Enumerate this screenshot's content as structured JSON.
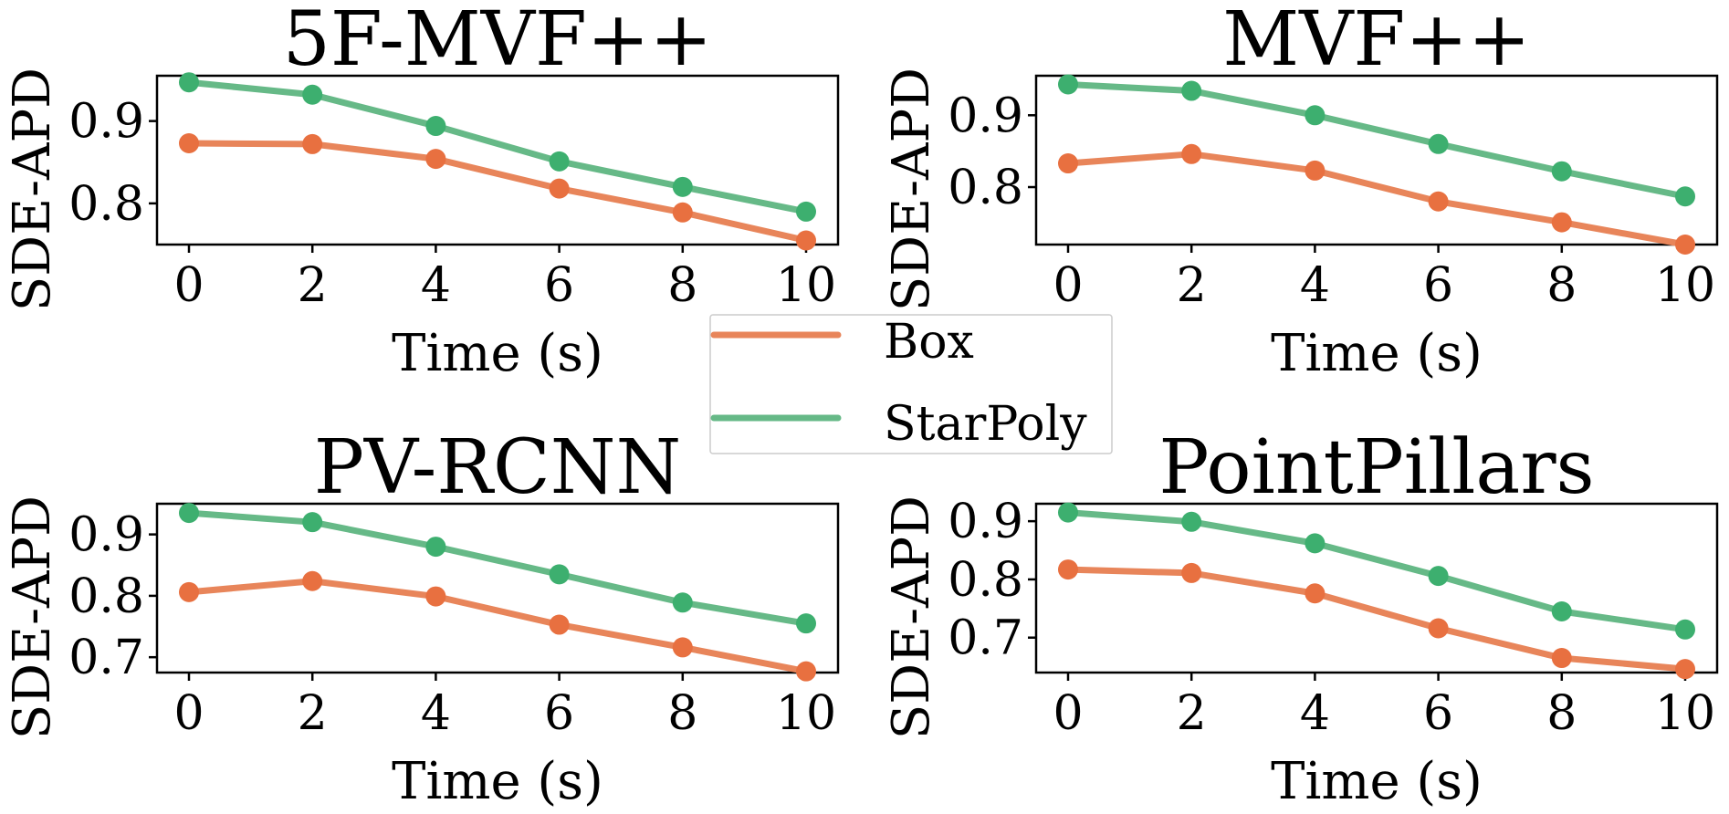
{
  "chart_data": [
    {
      "type": "line",
      "title": "5F-MVF++",
      "xlabel": "Time (s)",
      "ylabel": "SDE-APD",
      "x": [
        0,
        2,
        4,
        6,
        8,
        10
      ],
      "xticks": [
        "0",
        "2",
        "4",
        "6",
        "8",
        "10"
      ],
      "ylim": [
        0.75,
        0.955
      ],
      "yticks": [
        0.8,
        0.9
      ],
      "ytick_labels": [
        "0.8",
        "0.9"
      ],
      "series": [
        {
          "name": "Box",
          "values": [
            0.873,
            0.872,
            0.854,
            0.818,
            0.789,
            0.755
          ]
        },
        {
          "name": "StarPoly",
          "values": [
            0.947,
            0.932,
            0.894,
            0.851,
            0.82,
            0.79
          ]
        }
      ]
    },
    {
      "type": "line",
      "title": "MVF++",
      "xlabel": "Time (s)",
      "ylabel": "SDE-APD",
      "x": [
        0,
        2,
        4,
        6,
        8,
        10
      ],
      "xticks": [
        "0",
        "2",
        "4",
        "6",
        "8",
        "10"
      ],
      "ylim": [
        0.72,
        0.955
      ],
      "yticks": [
        0.8,
        0.9
      ],
      "ytick_labels": [
        "0.8",
        "0.9"
      ],
      "series": [
        {
          "name": "Box",
          "values": [
            0.833,
            0.846,
            0.823,
            0.78,
            0.751,
            0.72
          ]
        },
        {
          "name": "StarPoly",
          "values": [
            0.943,
            0.934,
            0.9,
            0.86,
            0.822,
            0.787
          ]
        }
      ]
    },
    {
      "type": "line",
      "title": "PV-RCNN",
      "xlabel": "Time (s)",
      "ylabel": "SDE-APD",
      "x": [
        0,
        2,
        4,
        6,
        8,
        10
      ],
      "xticks": [
        "0",
        "2",
        "4",
        "6",
        "8",
        "10"
      ],
      "ylim": [
        0.675,
        0.95
      ],
      "yticks": [
        0.7,
        0.8,
        0.9
      ],
      "ytick_labels": [
        "0.7",
        "0.8",
        "0.9"
      ],
      "series": [
        {
          "name": "Box",
          "values": [
            0.806,
            0.824,
            0.799,
            0.753,
            0.716,
            0.677
          ]
        },
        {
          "name": "StarPoly",
          "values": [
            0.935,
            0.92,
            0.88,
            0.835,
            0.789,
            0.755
          ]
        }
      ]
    },
    {
      "type": "line",
      "title": "PointPillars",
      "xlabel": "Time (s)",
      "ylabel": "SDE-APD",
      "x": [
        0,
        2,
        4,
        6,
        8,
        10
      ],
      "xticks": [
        "0",
        "2",
        "4",
        "6",
        "8",
        "10"
      ],
      "ylim": [
        0.64,
        0.93
      ],
      "yticks": [
        0.7,
        0.8,
        0.9
      ],
      "ytick_labels": [
        "0.7",
        "0.8",
        "0.9"
      ],
      "series": [
        {
          "name": "Box",
          "values": [
            0.817,
            0.811,
            0.776,
            0.716,
            0.665,
            0.646
          ]
        },
        {
          "name": "StarPoly",
          "values": [
            0.915,
            0.899,
            0.862,
            0.806,
            0.745,
            0.714
          ]
        }
      ]
    }
  ],
  "legend": {
    "items": [
      {
        "label": "Box",
        "color": "#E8855A"
      },
      {
        "label": "StarPoly",
        "color": "#66B987"
      }
    ]
  },
  "colors": {
    "Box": "#E8855A",
    "StarPoly": "#66B987",
    "Box_marker": "#E87040",
    "StarPoly_marker": "#3DAF6F"
  }
}
